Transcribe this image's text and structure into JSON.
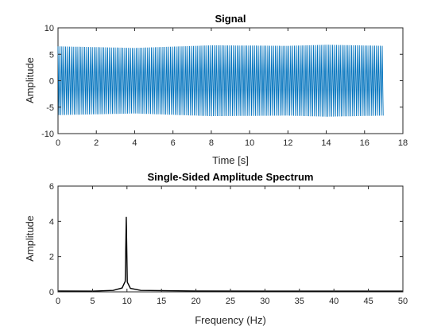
{
  "chart_data": [
    {
      "type": "line",
      "title": "Signal",
      "xlabel": "Time [s]",
      "ylabel": "Amplitude",
      "xlim": [
        0,
        18
      ],
      "ylim": [
        -10,
        10
      ],
      "xticks": [
        "0",
        "2",
        "4",
        "6",
        "8",
        "10",
        "12",
        "14",
        "16",
        "18"
      ],
      "yticks": [
        "-10",
        "-5",
        "0",
        "5",
        "10"
      ],
      "grid": false,
      "series": [
        {
          "color": "#0072BD",
          "x_range": [
            0,
            17
          ],
          "frequency_hz": 10,
          "amplitude": 6.5,
          "envelope_points": [
            [
              0,
              6.5
            ],
            [
              4,
              6.2
            ],
            [
              8,
              6.7
            ],
            [
              12,
              6.6
            ],
            [
              14,
              6.8
            ],
            [
              17,
              6.6
            ]
          ]
        }
      ]
    },
    {
      "type": "line",
      "title": "Single-Sided Amplitude Spectrum",
      "xlabel": "Frequency (Hz)",
      "ylabel": "Amplitude",
      "xlim": [
        0,
        50
      ],
      "ylim": [
        0,
        6
      ],
      "xticks": [
        "0",
        "5",
        "10",
        "15",
        "20",
        "25",
        "30",
        "35",
        "40",
        "45",
        "50"
      ],
      "yticks": [
        "0",
        "2",
        "4",
        "6"
      ],
      "grid": false,
      "series": [
        {
          "color": "#000000",
          "points": [
            [
              0,
              0.05
            ],
            [
              5,
              0.04
            ],
            [
              8,
              0.08
            ],
            [
              9.3,
              0.22
            ],
            [
              9.75,
              0.6
            ],
            [
              9.9,
              4.25
            ],
            [
              10.05,
              0.55
            ],
            [
              10.5,
              0.2
            ],
            [
              12,
              0.08
            ],
            [
              20,
              0.05
            ],
            [
              30,
              0.04
            ],
            [
              40,
              0.04
            ],
            [
              50,
              0.04
            ]
          ]
        }
      ]
    }
  ]
}
